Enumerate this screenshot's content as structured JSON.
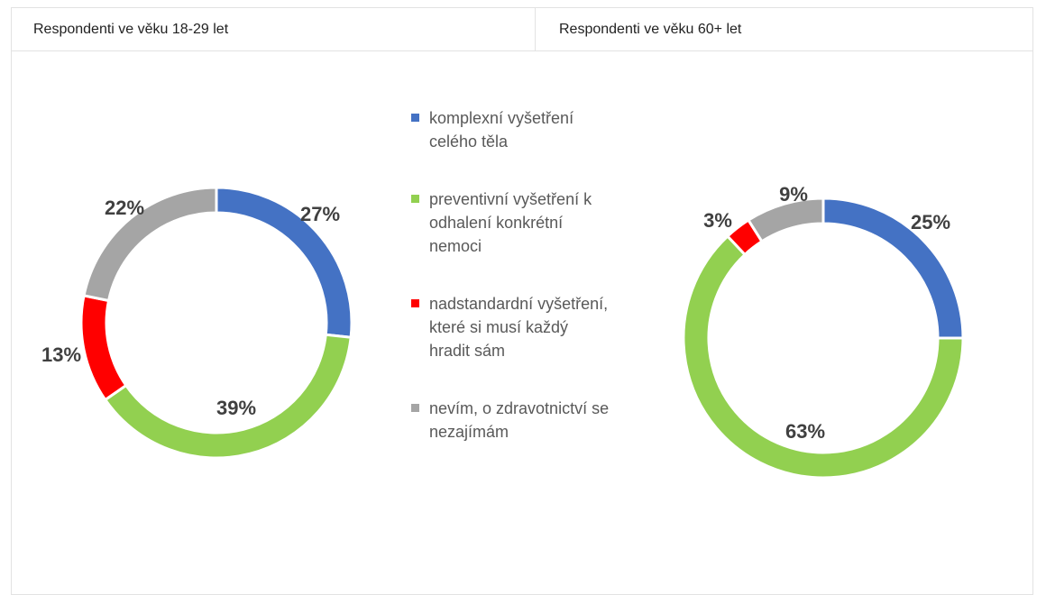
{
  "colors": {
    "blue": "#4472C4",
    "green": "#92D050",
    "red": "#FF0000",
    "gray": "#A5A5A5"
  },
  "legend": [
    {
      "label": "komplexní vyšetření celého těla",
      "color": "#4472C4"
    },
    {
      "label": "preventivní vyšetření k odhalení konkrétní nemoci",
      "color": "#92D050"
    },
    {
      "label": "nadstandardní vyšetření, které si musí každý hradit sám",
      "color": "#FF0000"
    },
    {
      "label": "nevím, o zdravotnictví se nezajímám",
      "color": "#A5A5A5"
    }
  ],
  "chart_data": [
    {
      "type": "pie",
      "variant": "donut",
      "title": "Respondenti ve věku 18-29 let",
      "categories": [
        "komplexní vyšetření celého těla",
        "preventivní vyšetření k odhalení konkrétní nemoci",
        "nadstandardní vyšetření, které si musí každý hradit sám",
        "nevím, o zdravotnictví se nezajímám"
      ],
      "values": [
        27,
        39,
        13,
        22
      ],
      "labels": [
        "27%",
        "39%",
        "13%",
        "22%"
      ]
    },
    {
      "type": "pie",
      "variant": "donut",
      "title": "Respondenti ve věku 60+ let",
      "categories": [
        "komplexní vyšetření celého těla",
        "preventivní vyšetření k odhalení konkrétní nemoci",
        "nadstandardní vyšetření, které si musí každý hradit sám",
        "nevím, o zdravotnictví se nezajímám"
      ],
      "values": [
        25,
        63,
        3,
        9
      ],
      "labels": [
        "25%",
        "63%",
        "3%",
        "9%"
      ]
    }
  ]
}
